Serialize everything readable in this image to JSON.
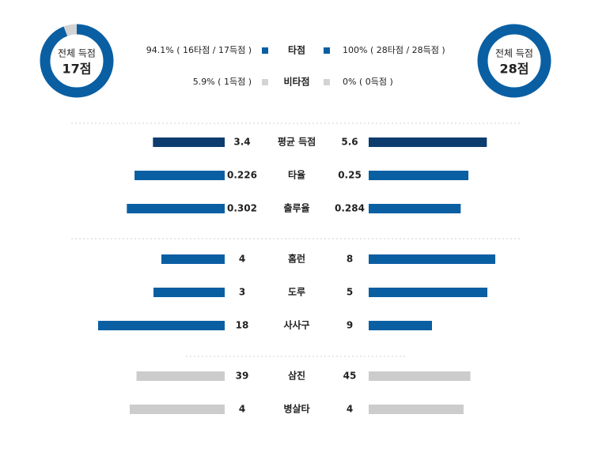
{
  "donuts": [
    {
      "caption": "전체 득점",
      "total": "17점",
      "segments": [
        {
          "value": 94.1,
          "color": "#0a5fa3"
        },
        {
          "value": 5.9,
          "color": "#d3d3d3"
        }
      ]
    },
    {
      "caption": "전체 득점",
      "total": "28점",
      "segments": [
        {
          "value": 100,
          "color": "#0a5fa3"
        },
        {
          "value": 0,
          "color": "#d3d3d3"
        }
      ]
    }
  ],
  "legend": [
    {
      "name": "타점",
      "left": "94.1% ( 16타점 / 17득점 )",
      "right": "100% ( 28타점 / 28득점 )",
      "color": "#0a5fa3"
    },
    {
      "name": "비타점",
      "left": "5.9% ( 1득점 )",
      "right": "0% ( 0득점 )",
      "color": "#d3d3d3"
    }
  ],
  "stats": [
    {
      "name": "평균 득점",
      "left": 3.4,
      "right": 5.6,
      "color": "#0d3c6e"
    },
    {
      "name": "타율",
      "left": 0.226,
      "right": 0.25,
      "color": "#0a5fa3"
    },
    {
      "name": "출루율",
      "left": 0.302,
      "right": 0.284,
      "color": "#0a5fa3"
    },
    {
      "name": "홈런",
      "left": 4,
      "right": 8,
      "color": "#0a5fa3"
    },
    {
      "name": "도루",
      "left": 3,
      "right": 5,
      "color": "#0a5fa3"
    },
    {
      "name": "사사구",
      "left": 18,
      "right": 9,
      "color": "#0a5fa3"
    },
    {
      "name": "삼진",
      "left": 39,
      "right": 45,
      "color": "#cccccc"
    },
    {
      "name": "병살타",
      "left": 4,
      "right": 4,
      "color": "#cccccc"
    }
  ]
}
